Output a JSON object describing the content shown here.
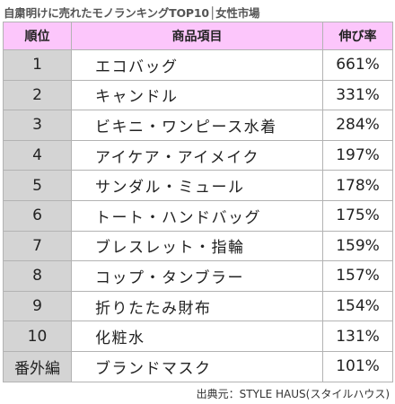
{
  "title": "自粛明けに売れたモノランキングTOP10│女性市場",
  "table": {
    "header": {
      "rank": "順位",
      "item": "商品項目",
      "rate": "伸び率"
    },
    "rows": [
      {
        "rank": "1",
        "item": "エコバッグ",
        "rate": "661%"
      },
      {
        "rank": "2",
        "item": "キャンドル",
        "rate": "331%"
      },
      {
        "rank": "3",
        "item": "ビキニ・ワンピース水着",
        "rate": "284%"
      },
      {
        "rank": "4",
        "item": "アイケア・アイメイク",
        "rate": "197%"
      },
      {
        "rank": "5",
        "item": "サンダル・ミュール",
        "rate": "178%"
      },
      {
        "rank": "6",
        "item": "トート・ハンドバッグ",
        "rate": "175%"
      },
      {
        "rank": "7",
        "item": "ブレスレット・指輪",
        "rate": "159%"
      },
      {
        "rank": "8",
        "item": "コップ・タンブラー",
        "rate": "157%"
      },
      {
        "rank": "9",
        "item": "折りたたみ財布",
        "rate": "154%"
      },
      {
        "rank": "10",
        "item": "化粧水",
        "rate": "131%"
      },
      {
        "rank": "番外編",
        "item": "ブランドマスク",
        "rate": "101%"
      }
    ]
  },
  "source": "出典元：STYLE HAUS(スタイルハウス)",
  "colors": {
    "header_bg": "#fcc6fb",
    "rank_bg": "#d4d4d4",
    "border": "#b3b3b3"
  }
}
